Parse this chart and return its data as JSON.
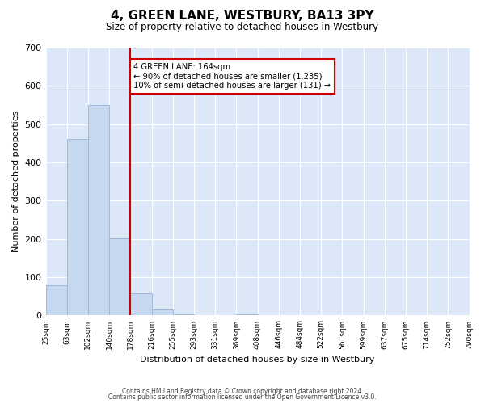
{
  "title": "4, GREEN LANE, WESTBURY, BA13 3PY",
  "subtitle": "Size of property relative to detached houses in Westbury",
  "xlabel": "Distribution of detached houses by size in Westbury",
  "ylabel": "Number of detached properties",
  "bin_edge_labels": [
    "25sqm",
    "63sqm",
    "102sqm",
    "140sqm",
    "178sqm",
    "216sqm",
    "255sqm",
    "293sqm",
    "331sqm",
    "369sqm",
    "408sqm",
    "446sqm",
    "484sqm",
    "522sqm",
    "561sqm",
    "599sqm",
    "637sqm",
    "675sqm",
    "714sqm",
    "752sqm",
    "790sqm"
  ],
  "bar_heights": [
    80,
    462,
    551,
    201,
    57,
    15,
    2,
    0,
    0,
    2,
    0,
    0,
    0,
    0,
    0,
    0,
    0,
    0,
    0,
    0
  ],
  "bar_color": "#c5d8f0",
  "bar_edge_color": "#a0b8d8",
  "vline_x": 3.5,
  "vline_color": "#cc0000",
  "annotation_text": "4 GREEN LANE: 164sqm\n← 90% of detached houses are smaller (1,235)\n10% of semi-detached houses are larger (131) →",
  "annotation_box_color": "#ffffff",
  "annotation_box_edge_color": "#cc0000",
  "ylim": [
    0,
    700
  ],
  "yticks": [
    0,
    100,
    200,
    300,
    400,
    500,
    600,
    700
  ],
  "footer_line1": "Contains HM Land Registry data © Crown copyright and database right 2024.",
  "footer_line2": "Contains public sector information licensed under the Open Government Licence v3.0.",
  "background_color": "#ffffff",
  "plot_bg_color": "#dce8f8"
}
